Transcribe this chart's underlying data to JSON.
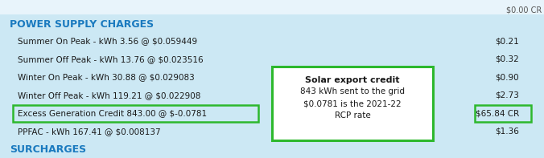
{
  "bg_color": "#cce8f4",
  "header_color": "#1a7abf",
  "green_box_color": "#2db82d",
  "text_color": "#1a1a1a",
  "white": "#ffffff",
  "header_text": "POWER SUPPLY CHARGES",
  "footer_text": "SURCHARGES",
  "line_items": [
    {
      "label": "Summer On Peak - kWh 3.56 @ $0.059449",
      "amount": "$0.21",
      "highlight": false
    },
    {
      "label": "Summer Off Peak - kWh 13.76 @ $0.023516",
      "amount": "$0.32",
      "highlight": false
    },
    {
      "label": "Winter On Peak - kWh 30.88 @ $0.029083",
      "amount": "$0.90",
      "highlight": false
    },
    {
      "label": "Winter Off Peak - kWh 119.21 @ $0.022908",
      "amount": "$2.73",
      "highlight": false
    },
    {
      "label": "Excess Generation Credit 843.00 @ $-0.0781",
      "amount": "$65.84 CR",
      "highlight": true
    },
    {
      "label": "PPFAC - kWh 167.41 @ $0.008137",
      "amount": "$1.36",
      "highlight": false
    }
  ],
  "callout_title": "Solar export credit",
  "callout_lines": [
    "843 kWh sent to the grid",
    "$0.0781 is the 2021-22",
    "RCP rate"
  ],
  "top_strip_color": "#e8f4fb",
  "top_right_text": "$0.00 CR",
  "figsize": [
    6.76,
    1.97
  ],
  "dpi": 100
}
